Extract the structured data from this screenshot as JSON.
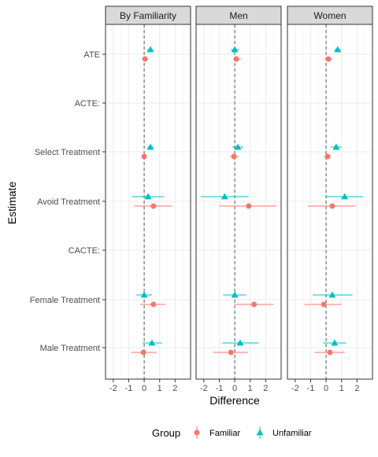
{
  "chart_data": {
    "type": "scatter",
    "subtype": "dot-and-whisker",
    "xlabel": "Difference",
    "ylabel": "Estimate",
    "xlim": [
      -2.5,
      3.0
    ],
    "x_ticks": [
      -2,
      -1,
      0,
      1,
      2
    ],
    "x_tick_labels": [
      "-2",
      "-1",
      "0",
      "1",
      "2"
    ],
    "reference_line": 0,
    "grid": true,
    "facet_strip_color": "#d9d9d9",
    "categories": [
      "ATE",
      "ACTE:",
      "Select Treatment",
      "Avoid Treatment",
      "CACTE:",
      "Female Treatment",
      "Male Treatment"
    ],
    "legend": {
      "title": "Group",
      "position": "bottom",
      "items": [
        {
          "label": "Familiar",
          "color": "#F8766D",
          "shape": "circle"
        },
        {
          "label": "Unfamiliar",
          "color": "#00BFC4",
          "shape": "triangle"
        }
      ]
    },
    "panels": [
      {
        "title": "By Familiarity",
        "series": [
          {
            "group": "Familiar",
            "points": [
              {
                "category": "ATE",
                "x": 0.05,
                "lo": -0.1,
                "hi": 0.25
              },
              {
                "category": "Select Treatment",
                "x": 0.0,
                "lo": -0.15,
                "hi": 0.15
              },
              {
                "category": "Avoid Treatment",
                "x": 0.6,
                "lo": -0.65,
                "hi": 1.8
              },
              {
                "category": "Female Treatment",
                "x": 0.6,
                "lo": -0.25,
                "hi": 1.4
              },
              {
                "category": "Male Treatment",
                "x": -0.05,
                "lo": -0.85,
                "hi": 0.8
              }
            ]
          },
          {
            "group": "Unfamiliar",
            "points": [
              {
                "category": "ATE",
                "x": 0.4,
                "lo": 0.2,
                "hi": 0.6
              },
              {
                "category": "Select Treatment",
                "x": 0.4,
                "lo": 0.2,
                "hi": 0.6
              },
              {
                "category": "Avoid Treatment",
                "x": 0.25,
                "lo": -0.8,
                "hi": 1.3
              },
              {
                "category": "Female Treatment",
                "x": 0.0,
                "lo": -0.5,
                "hi": 0.5
              },
              {
                "category": "Male Treatment",
                "x": 0.5,
                "lo": -0.1,
                "hi": 1.15
              }
            ]
          }
        ]
      },
      {
        "title": "Men",
        "series": [
          {
            "group": "Familiar",
            "points": [
              {
                "category": "ATE",
                "x": 0.1,
                "lo": -0.1,
                "hi": 0.4
              },
              {
                "category": "Select Treatment",
                "x": -0.05,
                "lo": -0.3,
                "hi": 0.25
              },
              {
                "category": "Avoid Treatment",
                "x": 0.9,
                "lo": -1.0,
                "hi": 2.7
              },
              {
                "category": "Female Treatment",
                "x": 1.25,
                "lo": 0.0,
                "hi": 2.5
              },
              {
                "category": "Male Treatment",
                "x": -0.25,
                "lo": -1.4,
                "hi": 0.85
              }
            ]
          },
          {
            "group": "Unfamiliar",
            "points": [
              {
                "category": "ATE",
                "x": 0.0,
                "lo": -0.25,
                "hi": 0.3
              },
              {
                "category": "Select Treatment",
                "x": 0.2,
                "lo": -0.15,
                "hi": 0.55
              },
              {
                "category": "Avoid Treatment",
                "x": -0.65,
                "lo": -2.2,
                "hi": 0.9
              },
              {
                "category": "Female Treatment",
                "x": 0.0,
                "lo": -0.75,
                "hi": 0.75
              },
              {
                "category": "Male Treatment",
                "x": 0.35,
                "lo": -0.8,
                "hi": 1.55
              }
            ]
          }
        ]
      },
      {
        "title": "Women",
        "series": [
          {
            "group": "Familiar",
            "points": [
              {
                "category": "ATE",
                "x": 0.15,
                "lo": -0.1,
                "hi": 0.4
              },
              {
                "category": "Select Treatment",
                "x": 0.1,
                "lo": -0.1,
                "hi": 0.3
              },
              {
                "category": "Avoid Treatment",
                "x": 0.4,
                "lo": -1.2,
                "hi": 1.9
              },
              {
                "category": "Female Treatment",
                "x": -0.15,
                "lo": -1.4,
                "hi": 1.0
              },
              {
                "category": "Male Treatment",
                "x": 0.25,
                "lo": -0.75,
                "hi": 1.2
              }
            ]
          },
          {
            "group": "Unfamiliar",
            "points": [
              {
                "category": "ATE",
                "x": 0.75,
                "lo": 0.55,
                "hi": 0.95
              },
              {
                "category": "Select Treatment",
                "x": 0.65,
                "lo": 0.3,
                "hi": 1.0
              },
              {
                "category": "Avoid Treatment",
                "x": 1.2,
                "lo": 0.0,
                "hi": 2.4
              },
              {
                "category": "Female Treatment",
                "x": 0.4,
                "lo": -0.85,
                "hi": 1.7
              },
              {
                "category": "Male Treatment",
                "x": 0.55,
                "lo": -0.2,
                "hi": 1.3
              }
            ]
          }
        ]
      }
    ]
  }
}
